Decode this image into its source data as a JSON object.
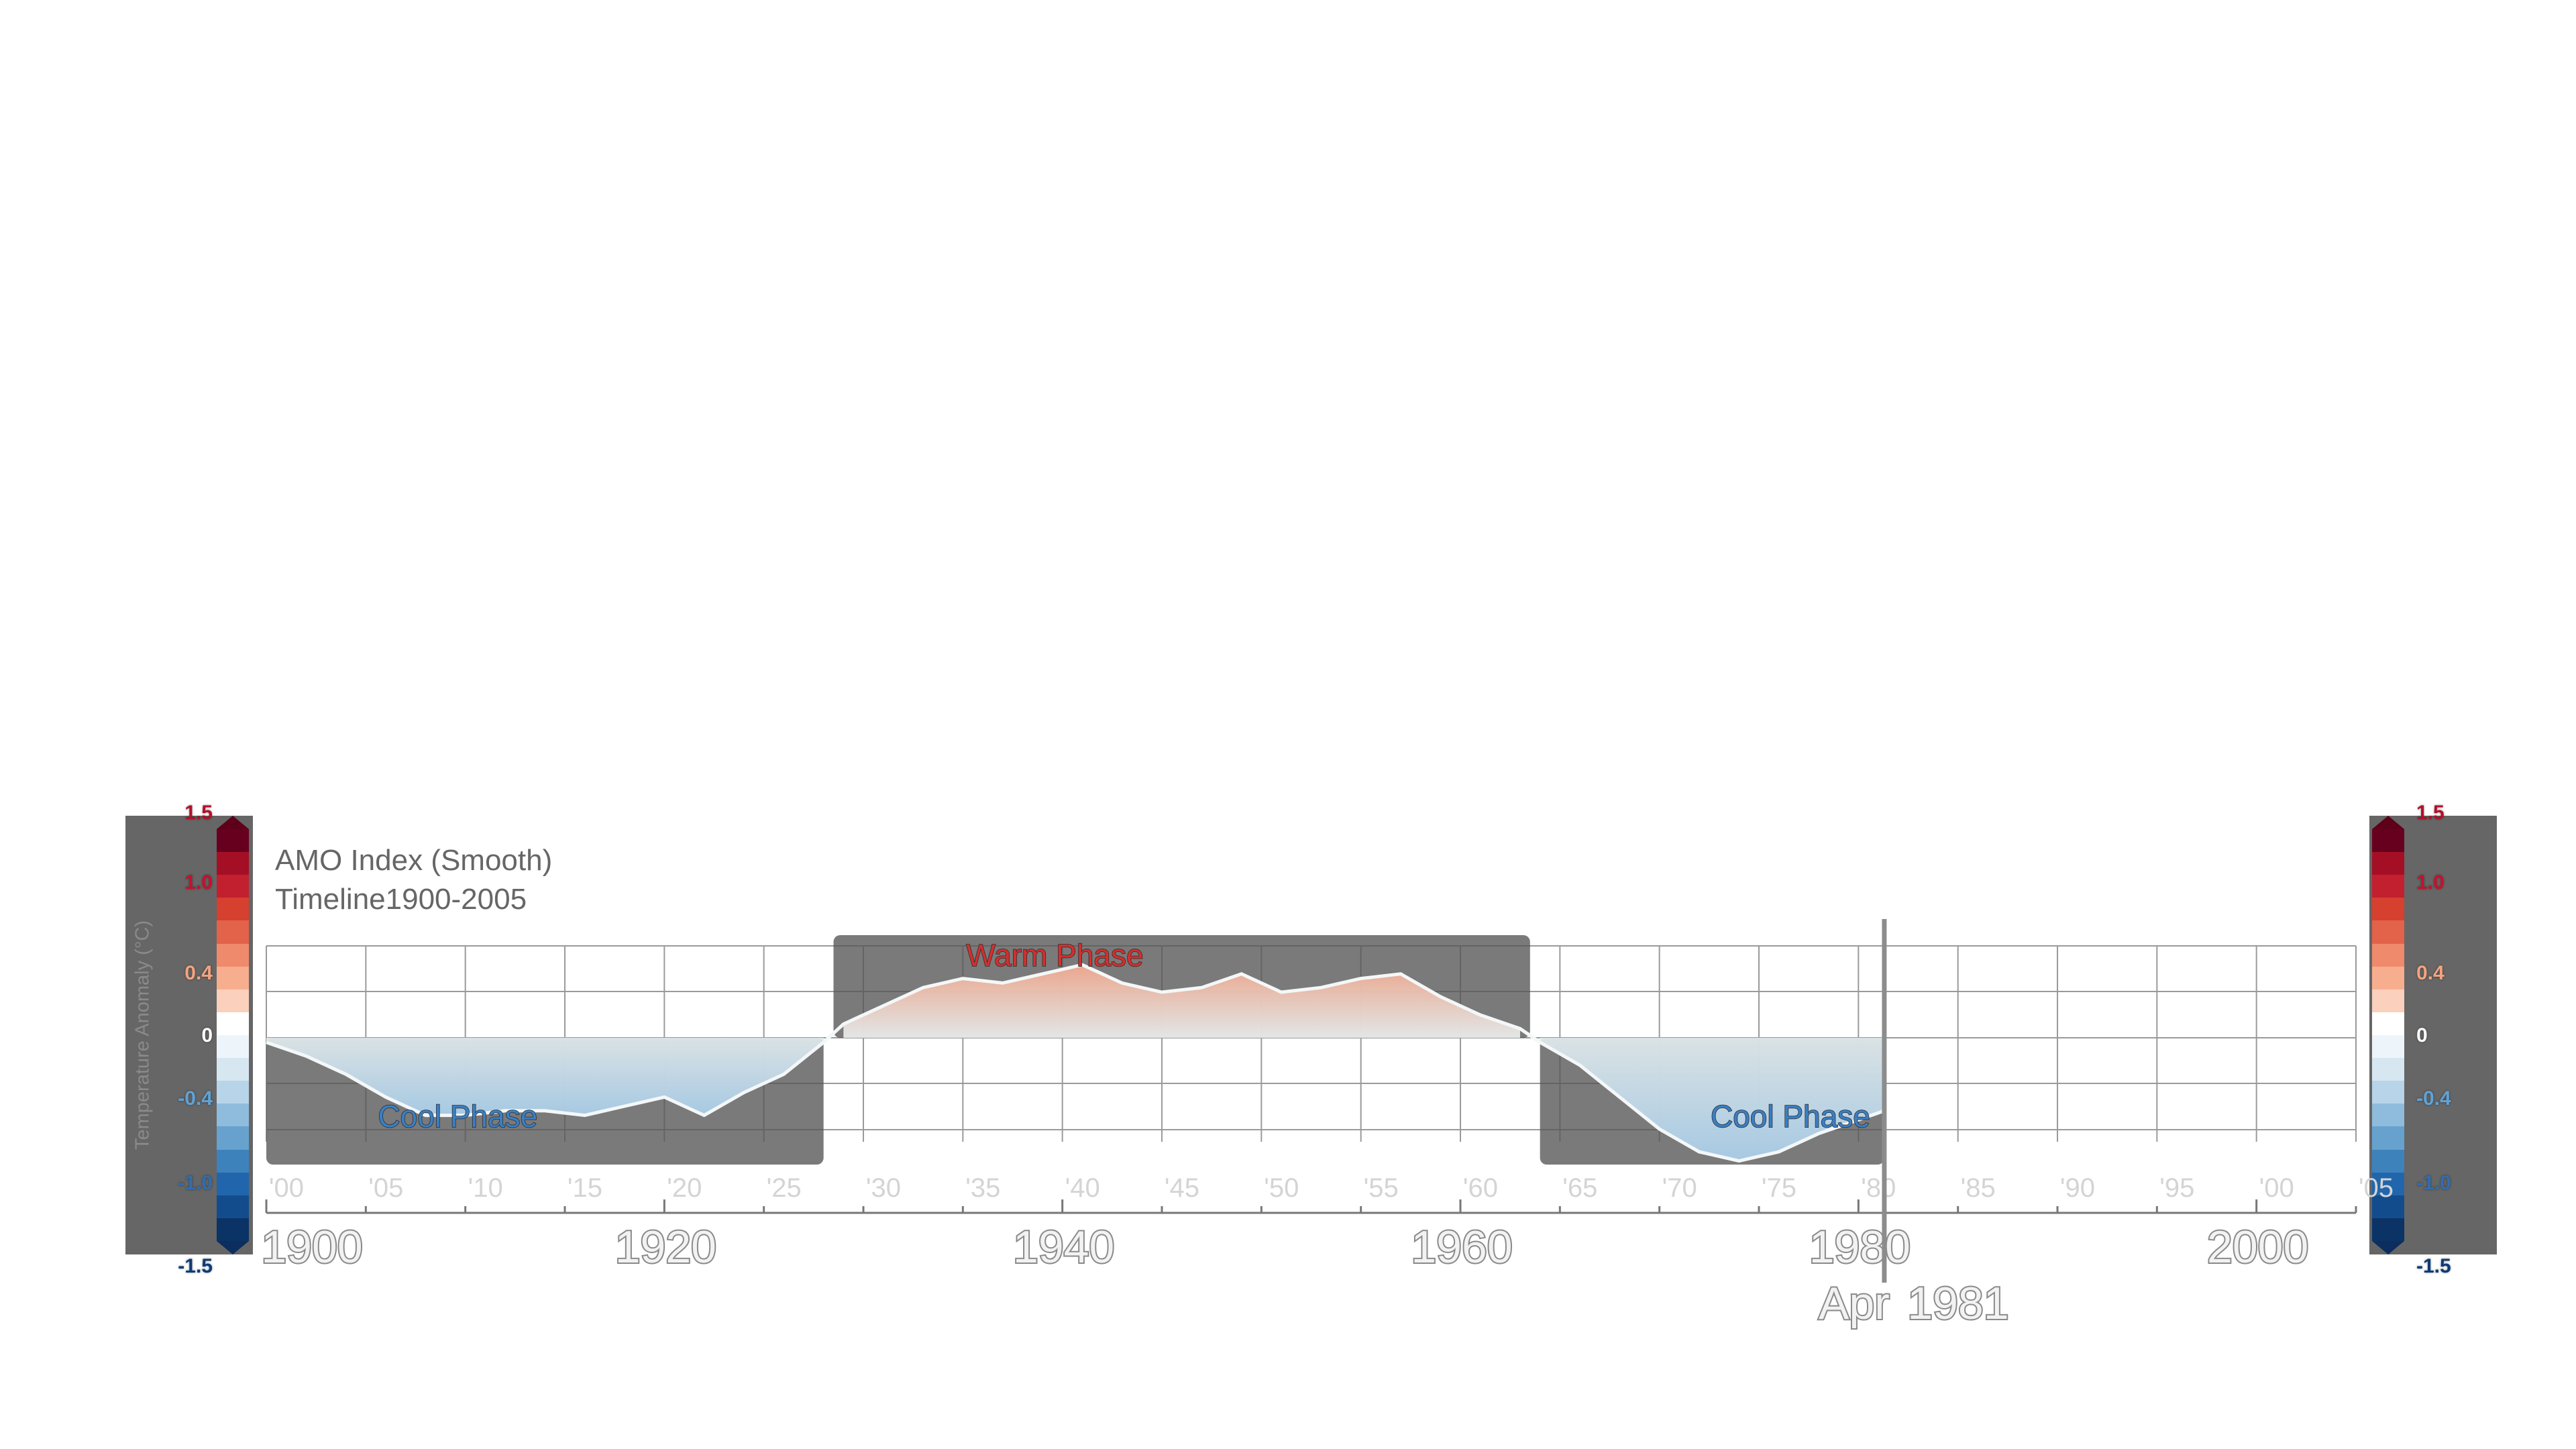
{
  "title": "AMO Index (Smooth)",
  "subtitle": "Timeline1900-2005",
  "colorbar": {
    "label": "Temperature Anomaly (°C)",
    "ticks": [
      {
        "label": "1.5",
        "value": 1.5,
        "color": "#b3102a"
      },
      {
        "label": "1.0",
        "value": 1.0,
        "color": "#c8102e"
      },
      {
        "label": "0.4",
        "value": 0.4,
        "color": "#f3a37e"
      },
      {
        "label": "0",
        "value": 0,
        "color": "#ffffff"
      },
      {
        "label": "-0.4",
        "value": -0.4,
        "color": "#5fa2d6"
      },
      {
        "label": "-1.0",
        "value": -1.0,
        "color": "#2f6db2"
      },
      {
        "label": "-1.5",
        "value": -1.5,
        "color": "#0d3a78"
      }
    ],
    "colors": [
      "#67001f",
      "#a50f26",
      "#c3202f",
      "#d6402f",
      "#e3624a",
      "#ef8a6c",
      "#f6ae8f",
      "#fbd0bc",
      "#ffffff",
      "#eef5fa",
      "#d6e7f2",
      "#b7d4e9",
      "#8fbcdc",
      "#66a2cd",
      "#3e82bb",
      "#2166ac",
      "#124c8c",
      "#0b3366"
    ]
  },
  "chart_data": {
    "type": "area",
    "title": "AMO Index (Smooth)",
    "subtitle": "Timeline1900-2005",
    "xlabel": "",
    "ylabel": "Temperature Anomaly (°C)",
    "xlim": [
      1900,
      2005
    ],
    "ylim": [
      -0.6,
      0.6
    ],
    "grid": true,
    "decade_labels": [
      "1900",
      "1920",
      "1940",
      "1960",
      "1980",
      "2000"
    ],
    "minor_tick_labels": [
      "'00",
      "'05",
      "'10",
      "'15",
      "'20",
      "'25",
      "'30",
      "'35",
      "'40",
      "'45",
      "'50",
      "'55",
      "'60",
      "'65",
      "'70",
      "'75",
      "'80",
      "'85",
      "'90",
      "'95",
      "'00",
      "'05"
    ],
    "current_time": {
      "month": "Apr",
      "year": "1981",
      "value": 1981.3
    },
    "phases": [
      {
        "label": "Cool Phase",
        "start": 1900,
        "end": 1928,
        "sign": "negative",
        "label_color": "#3b7fc4"
      },
      {
        "label": "Warm Phase",
        "start": 1928.5,
        "end": 1963.5,
        "sign": "positive",
        "label_color": "#d32f2f"
      },
      {
        "label": "Cool Phase",
        "start": 1964,
        "end": 1981.3,
        "sign": "negative",
        "label_color": "#3b7fc4"
      }
    ],
    "series": [
      {
        "x": [
          1900,
          1902,
          1904,
          1906,
          1908,
          1910,
          1912,
          1914,
          1916,
          1918,
          1920,
          1922,
          1924,
          1926,
          1928,
          1929,
          1931,
          1933,
          1935,
          1937,
          1939,
          1941,
          1943,
          1945,
          1947,
          1949,
          1951,
          1953,
          1955,
          1957,
          1959,
          1961,
          1963,
          1964,
          1966,
          1968,
          1970,
          1972,
          1974,
          1976,
          1978,
          1980,
          1981.3
        ],
        "y": [
          -0.01,
          -0.04,
          -0.08,
          -0.13,
          -0.17,
          -0.17,
          -0.16,
          -0.16,
          -0.17,
          -0.15,
          -0.13,
          -0.17,
          -0.12,
          -0.08,
          -0.01,
          0.03,
          0.07,
          0.11,
          0.13,
          0.12,
          0.14,
          0.16,
          0.12,
          0.1,
          0.11,
          0.14,
          0.1,
          0.11,
          0.13,
          0.14,
          0.09,
          0.05,
          0.02,
          -0.01,
          -0.06,
          -0.13,
          -0.2,
          -0.25,
          -0.27,
          -0.25,
          -0.21,
          -0.18,
          -0.16
        ]
      }
    ]
  }
}
